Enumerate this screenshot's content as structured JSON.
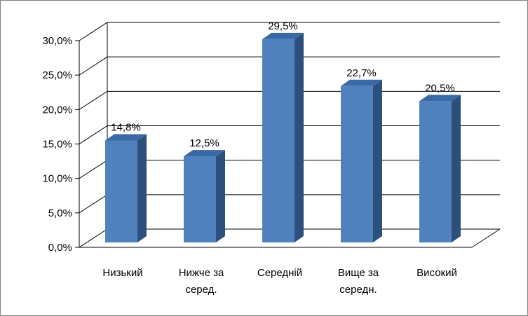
{
  "chart_data": {
    "type": "bar",
    "title": "",
    "xlabel": "",
    "ylabel": "",
    "ylim": [
      0,
      30
    ],
    "y_ticks": [
      0,
      5,
      10,
      15,
      20,
      25,
      30
    ],
    "y_tick_labels": [
      "0,0%",
      "5,0%",
      "10,0%",
      "15,0%",
      "20,0%",
      "25,0%",
      "30,0%"
    ],
    "grid": true,
    "legend": "none",
    "style": "3d-columns",
    "categories": [
      [
        "Низький"
      ],
      [
        "Нижче за",
        "серед."
      ],
      [
        "Середній"
      ],
      [
        "Вище за",
        "середн."
      ],
      [
        "Високий"
      ]
    ],
    "values": [
      14.8,
      12.5,
      29.5,
      22.7,
      20.5
    ],
    "value_labels": [
      "14,8%",
      "12,5%",
      "29,5%",
      "22,7%",
      "20,5%"
    ],
    "colors": {
      "bar_front": "#4f81bd",
      "bar_side": "#2c4f7c",
      "bar_top": "#3a6aa6",
      "grid": "#000000",
      "wall": "#ffffff",
      "frame": "#7f7f7f"
    }
  }
}
